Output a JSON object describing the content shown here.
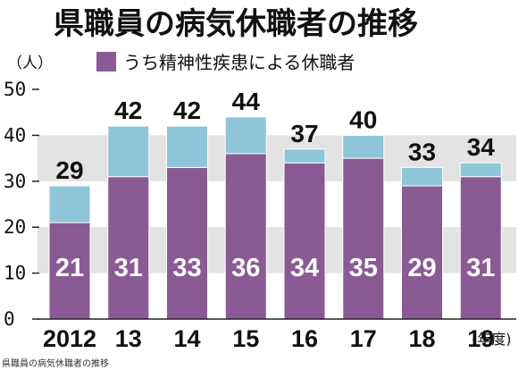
{
  "title": "県職員の病気休職者の推移",
  "caption": "県職員の病気休職者の推移",
  "chart_data": {
    "type": "bar",
    "stacked": true,
    "y_unit_label": "（人）",
    "x_unit_label": "(年度)",
    "ylim": [
      0,
      50
    ],
    "yticks": [
      "0",
      "10",
      "20",
      "30",
      "40",
      "50"
    ],
    "categories": [
      "2012",
      "13",
      "14",
      "15",
      "16",
      "17",
      "18",
      "19"
    ],
    "totals": [
      29,
      42,
      42,
      44,
      37,
      40,
      33,
      34
    ],
    "series": [
      {
        "name": "うち精神性疾患",
        "values": [
          21,
          31,
          33,
          36,
          34,
          35,
          29,
          31
        ],
        "color": "#8a5a95"
      },
      {
        "values": [
          8,
          11,
          9,
          8,
          3,
          5,
          4,
          3
        ],
        "color": "#8fc5d8"
      }
    ],
    "legend": {
      "label": "うち精神性疾患による休職者",
      "position": "top"
    },
    "grid_bands": true,
    "band_color": "#e3e3e3"
  }
}
